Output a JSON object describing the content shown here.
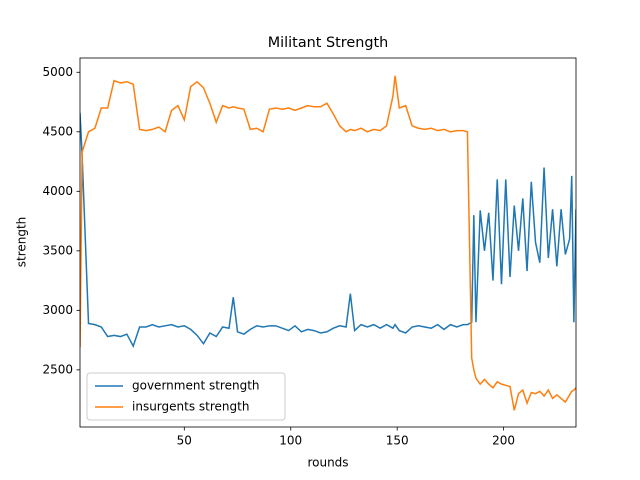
{
  "chart_data": {
    "type": "line",
    "title": "Militant Strength",
    "x_label": "rounds",
    "y_label": "strength",
    "x": [
      1,
      2,
      5,
      8,
      11,
      14,
      17,
      20,
      23,
      26,
      29,
      32,
      35,
      38,
      41,
      44,
      47,
      50,
      53,
      56,
      59,
      62,
      65,
      68,
      71,
      73,
      75,
      78,
      81,
      84,
      87,
      90,
      93,
      96,
      99,
      102,
      105,
      108,
      111,
      114,
      117,
      120,
      123,
      126,
      128,
      130,
      133,
      136,
      139,
      142,
      145,
      148,
      149,
      151,
      154,
      157,
      160,
      163,
      166,
      169,
      172,
      175,
      178,
      181,
      183,
      185,
      186,
      187,
      189,
      191,
      193,
      195,
      197,
      199,
      201,
      203,
      205,
      207,
      209,
      211,
      213,
      215,
      217,
      219,
      221,
      223,
      225,
      227,
      229,
      231,
      232,
      233,
      234
    ],
    "series": [
      {
        "name": "government strength",
        "color": "#1f77b4",
        "values": [
          4660,
          4300,
          2890,
          2880,
          2860,
          2780,
          2790,
          2780,
          2800,
          2700,
          2860,
          2860,
          2880,
          2860,
          2870,
          2880,
          2860,
          2870,
          2840,
          2790,
          2720,
          2810,
          2780,
          2860,
          2850,
          3110,
          2820,
          2800,
          2840,
          2870,
          2860,
          2870,
          2870,
          2850,
          2830,
          2870,
          2820,
          2840,
          2830,
          2810,
          2820,
          2850,
          2870,
          2860,
          3140,
          2830,
          2880,
          2860,
          2880,
          2850,
          2880,
          2850,
          2880,
          2830,
          2810,
          2860,
          2870,
          2860,
          2850,
          2880,
          2840,
          2880,
          2860,
          2880,
          2880,
          2900,
          3800,
          2900,
          3840,
          3500,
          3820,
          3250,
          4100,
          3220,
          4100,
          3280,
          3880,
          3500,
          3940,
          3330,
          4080,
          3570,
          3400,
          4200,
          3440,
          3850,
          3370,
          3850,
          3470,
          3600,
          4130,
          2900,
          3850
        ]
      },
      {
        "name": "insurgents strength",
        "color": "#ff7f0e",
        "values": [
          2690,
          4330,
          4500,
          4530,
          4700,
          4700,
          4930,
          4910,
          4920,
          4900,
          4520,
          4510,
          4520,
          4540,
          4500,
          4680,
          4720,
          4600,
          4880,
          4920,
          4870,
          4740,
          4580,
          4720,
          4700,
          4710,
          4700,
          4690,
          4520,
          4530,
          4500,
          4690,
          4700,
          4690,
          4700,
          4680,
          4700,
          4720,
          4710,
          4710,
          4740,
          4650,
          4550,
          4500,
          4520,
          4510,
          4530,
          4500,
          4520,
          4510,
          4550,
          4800,
          4970,
          4700,
          4720,
          4550,
          4530,
          4520,
          4530,
          4510,
          4520,
          4500,
          4510,
          4510,
          4500,
          2600,
          2500,
          2430,
          2380,
          2420,
          2380,
          2350,
          2400,
          2380,
          2370,
          2360,
          2160,
          2300,
          2330,
          2220,
          2310,
          2300,
          2320,
          2280,
          2330,
          2260,
          2290,
          2260,
          2230,
          2290,
          2320,
          2330,
          2350
        ]
      }
    ],
    "xlim": [
      1,
      234
    ],
    "ylim": [
      2020,
      5120
    ],
    "xticks": [
      50,
      100,
      150,
      200
    ],
    "yticks": [
      2500,
      3000,
      3500,
      4000,
      4500,
      5000
    ],
    "legend": "lower left"
  }
}
